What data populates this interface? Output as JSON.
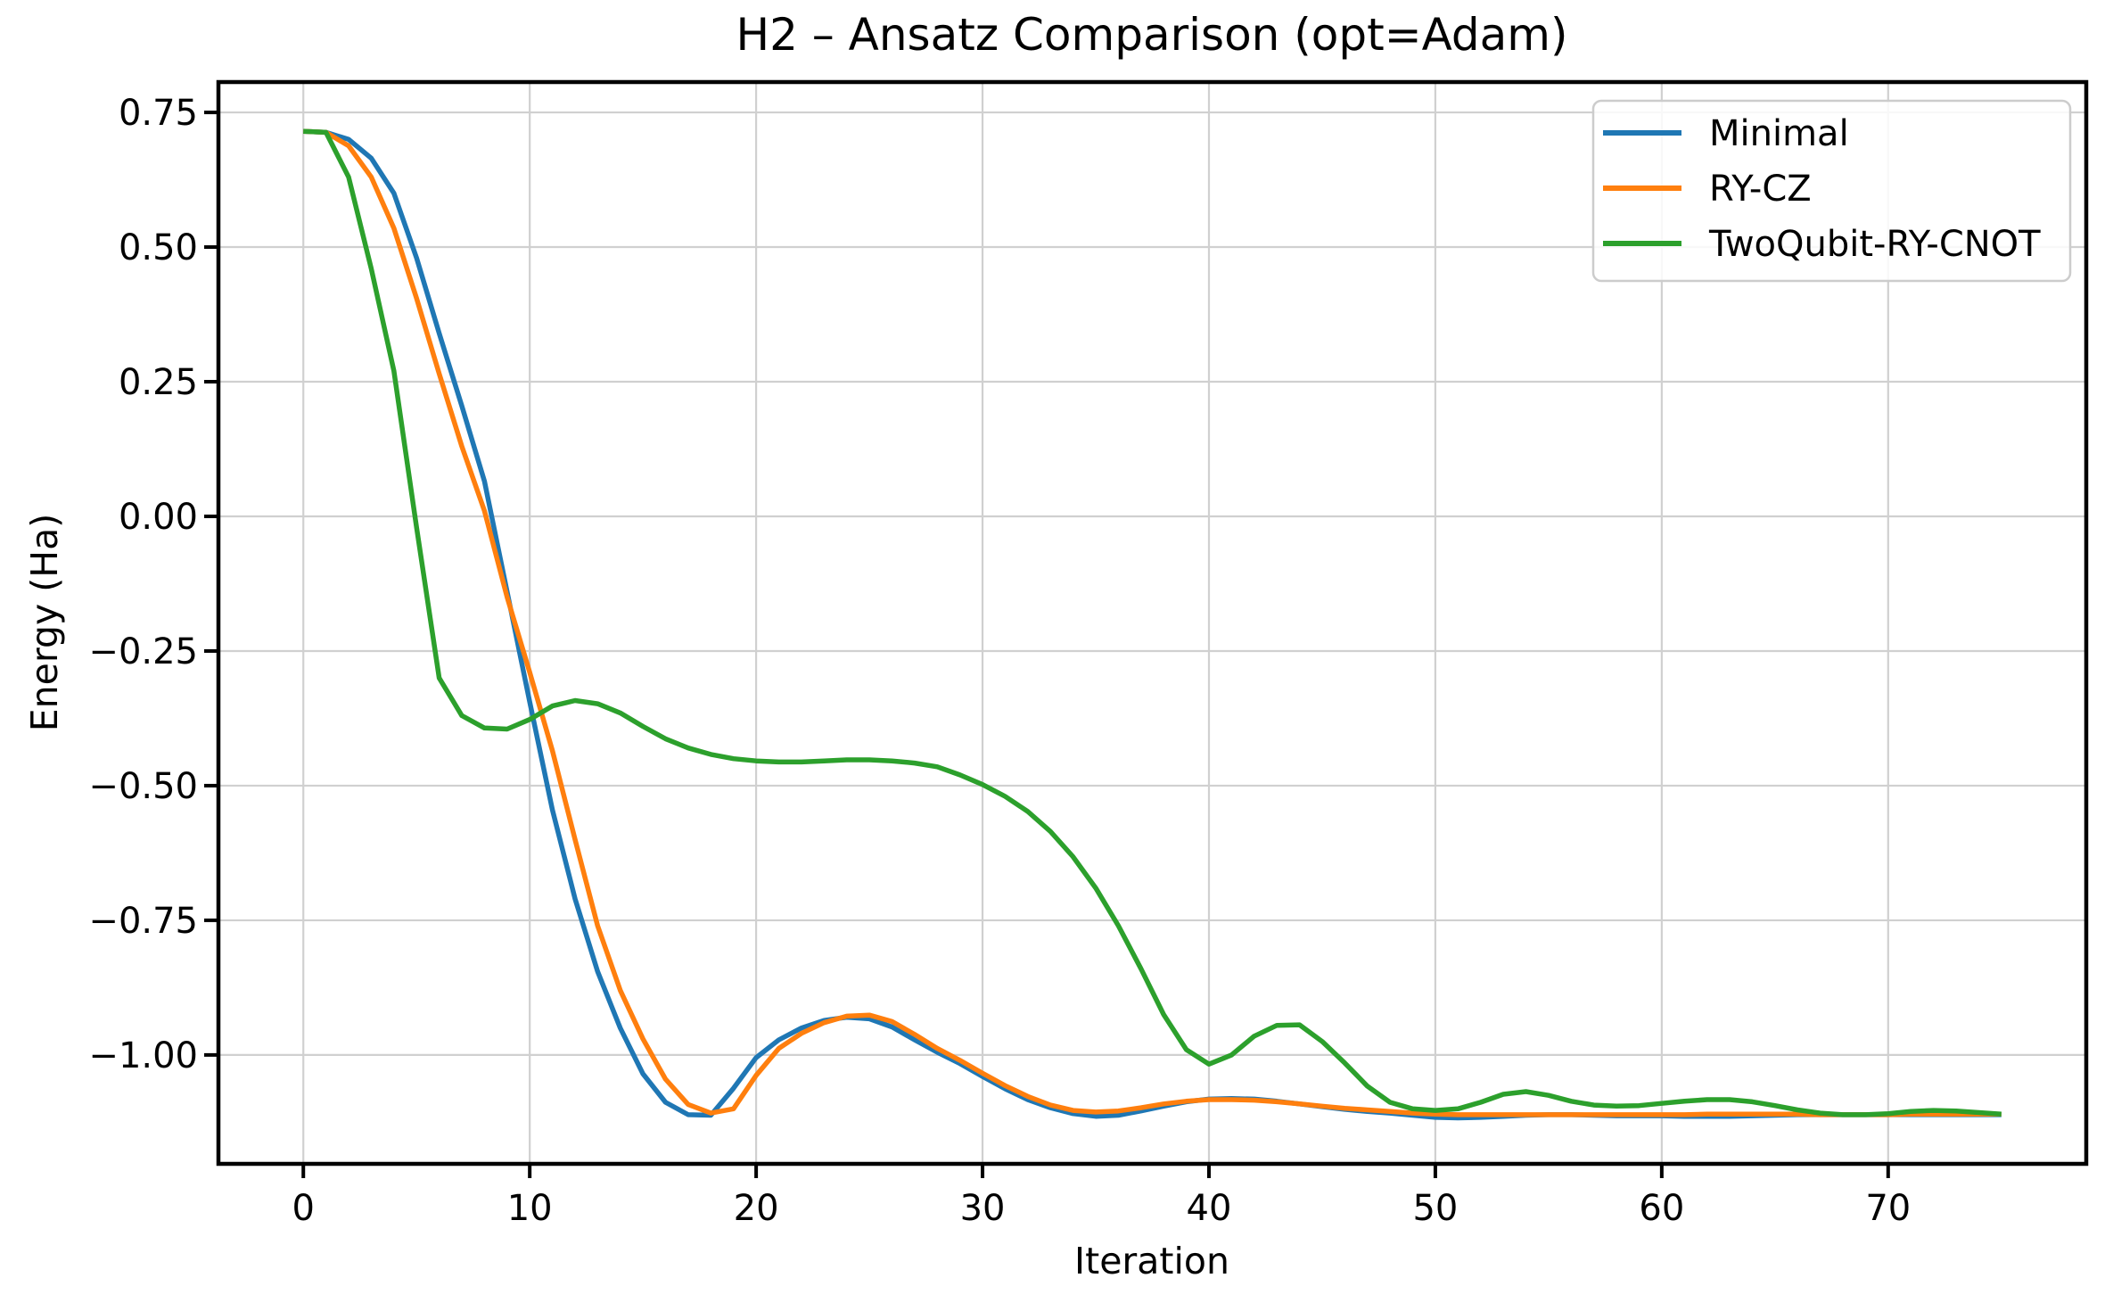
{
  "title": "H2 – Ansatz Comparison (opt=Adam)",
  "chart_data": {
    "type": "line",
    "title": "H2 – Ansatz Comparison (opt=Adam)",
    "xlabel": "Iteration",
    "ylabel": "Energy (Ha)",
    "xlim": [
      -3.75,
      78.75
    ],
    "ylim": [
      -1.2022,
      0.8064
    ],
    "x_ticks": [
      0,
      10,
      20,
      30,
      40,
      50,
      60,
      70
    ],
    "y_ticks": [
      0.75,
      0.5,
      0.25,
      0.0,
      -0.25,
      -0.5,
      -0.75,
      -1.0
    ],
    "grid": true,
    "grid_color": "#d0d0d0",
    "legend_position": "upper right",
    "x": [
      0,
      1,
      2,
      3,
      4,
      5,
      6,
      7,
      8,
      9,
      10,
      11,
      12,
      13,
      14,
      15,
      16,
      17,
      18,
      19,
      20,
      21,
      22,
      23,
      24,
      25,
      26,
      27,
      28,
      29,
      30,
      31,
      32,
      33,
      34,
      35,
      36,
      37,
      38,
      39,
      40,
      41,
      42,
      43,
      44,
      45,
      46,
      47,
      48,
      49,
      50,
      51,
      52,
      53,
      54,
      55,
      56,
      57,
      58,
      59,
      60,
      61,
      62,
      63,
      64,
      65,
      66,
      67,
      68,
      69,
      70,
      71,
      72,
      73,
      74,
      75
    ],
    "series": [
      {
        "name": "Minimal",
        "color": "#1f77b4",
        "values": [
          0.715,
          0.713,
          0.7,
          0.665,
          0.6,
          0.48,
          0.34,
          0.205,
          0.065,
          -0.14,
          -0.345,
          -0.545,
          -0.71,
          -0.845,
          -0.95,
          -1.035,
          -1.088,
          -1.111,
          -1.112,
          -1.062,
          -1.005,
          -0.972,
          -0.95,
          -0.936,
          -0.93,
          -0.933,
          -0.948,
          -0.972,
          -0.995,
          -1.016,
          -1.04,
          -1.063,
          -1.083,
          -1.098,
          -1.109,
          -1.114,
          -1.112,
          -1.104,
          -1.095,
          -1.087,
          -1.082,
          -1.081,
          -1.082,
          -1.086,
          -1.091,
          -1.096,
          -1.101,
          -1.105,
          -1.108,
          -1.112,
          -1.116,
          -1.117,
          -1.116,
          -1.114,
          -1.112,
          -1.111,
          -1.111,
          -1.112,
          -1.113,
          -1.113,
          -1.113,
          -1.114,
          -1.114,
          -1.114,
          -1.113,
          -1.112,
          -1.111,
          -1.111,
          -1.111,
          -1.111,
          -1.111,
          -1.111,
          -1.111,
          -1.111,
          -1.111,
          -1.111
        ]
      },
      {
        "name": "RY-CZ",
        "color": "#ff7f0e",
        "values": [
          0.715,
          0.713,
          0.688,
          0.63,
          0.535,
          0.405,
          0.265,
          0.13,
          0.01,
          -0.15,
          -0.29,
          -0.435,
          -0.6,
          -0.76,
          -0.88,
          -0.97,
          -1.045,
          -1.092,
          -1.108,
          -1.1,
          -1.038,
          -0.988,
          -0.96,
          -0.94,
          -0.928,
          -0.926,
          -0.938,
          -0.962,
          -0.988,
          -1.01,
          -1.034,
          -1.057,
          -1.077,
          -1.093,
          -1.103,
          -1.106,
          -1.104,
          -1.098,
          -1.091,
          -1.086,
          -1.083,
          -1.083,
          -1.084,
          -1.087,
          -1.091,
          -1.095,
          -1.099,
          -1.102,
          -1.105,
          -1.108,
          -1.11,
          -1.111,
          -1.111,
          -1.111,
          -1.111,
          -1.111,
          -1.111,
          -1.111,
          -1.111,
          -1.111,
          -1.111,
          -1.111,
          -1.11,
          -1.11,
          -1.11,
          -1.11,
          -1.11,
          -1.111,
          -1.111,
          -1.111,
          -1.111,
          -1.11,
          -1.11,
          -1.11,
          -1.11,
          -1.11
        ]
      },
      {
        "name": "TwoQubit-RY-CNOT",
        "color": "#2ca02c",
        "values": [
          0.715,
          0.713,
          0.63,
          0.46,
          0.27,
          -0.02,
          -0.3,
          -0.37,
          -0.393,
          -0.395,
          -0.377,
          -0.352,
          -0.342,
          -0.348,
          -0.365,
          -0.39,
          -0.413,
          -0.43,
          -0.442,
          -0.45,
          -0.454,
          -0.456,
          -0.456,
          -0.454,
          -0.452,
          -0.452,
          -0.454,
          -0.458,
          -0.465,
          -0.48,
          -0.498,
          -0.52,
          -0.548,
          -0.585,
          -0.632,
          -0.69,
          -0.76,
          -0.84,
          -0.925,
          -0.99,
          -1.017,
          -1.0,
          -0.965,
          -0.945,
          -0.944,
          -0.975,
          -1.015,
          -1.058,
          -1.088,
          -1.1,
          -1.103,
          -1.1,
          -1.088,
          -1.073,
          -1.068,
          -1.075,
          -1.086,
          -1.093,
          -1.095,
          -1.094,
          -1.09,
          -1.086,
          -1.083,
          -1.083,
          -1.087,
          -1.094,
          -1.102,
          -1.108,
          -1.111,
          -1.111,
          -1.109,
          -1.105,
          -1.103,
          -1.104,
          -1.107,
          -1.11
        ]
      }
    ]
  },
  "legend": {
    "items": [
      "Minimal",
      "RY-CZ",
      "TwoQubit-RY-CNOT"
    ]
  }
}
